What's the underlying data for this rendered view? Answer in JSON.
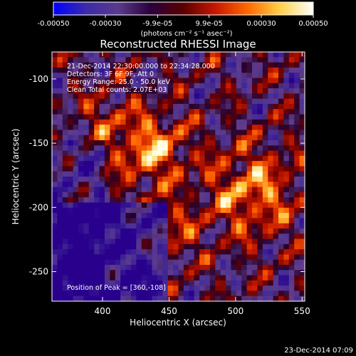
{
  "chart_data": {
    "type": "heatmap",
    "title": "Reconstructed RHESSI Image",
    "xlabel": "Heliocentric X (arcsec)",
    "ylabel": "Heliocentric Y (arcsec)",
    "xlim": [
      362,
      552
    ],
    "ylim": [
      -273,
      -79
    ],
    "xticks": [
      "400",
      "450",
      "500",
      "550"
    ],
    "yticks": [
      "-100",
      "-150",
      "-200",
      "-250"
    ],
    "colorbar": {
      "label": "(photons cm⁻² s⁻¹ asec⁻²)",
      "range": [
        -0.0005,
        0.0005
      ],
      "ticks": [
        "-0.00050",
        "-0.00030",
        "-9.9e-05",
        "9.9e-05",
        "0.00030",
        "0.00050"
      ],
      "colors": [
        "#0000ff",
        "#3c2aa8",
        "#5a3a8c",
        "#2a003a",
        "#5a0000",
        "#c81800",
        "#ff6a00",
        "#ffd24a",
        "#ffffff"
      ]
    },
    "annotations": [
      "21-Dec-2014 22:30:00.000 to 22:34:28.000",
      "Detectors: 3F 6F 9F, Att 0",
      "Energy Range: 25.0 - 50.0 keV",
      "Clean    Total counts: 2.07E+03"
    ],
    "peak_label": "Position of Peak = [360,-108]",
    "peak_position": [
      360,
      -108
    ],
    "timestamp": "23-Dec-2014 07:09"
  }
}
